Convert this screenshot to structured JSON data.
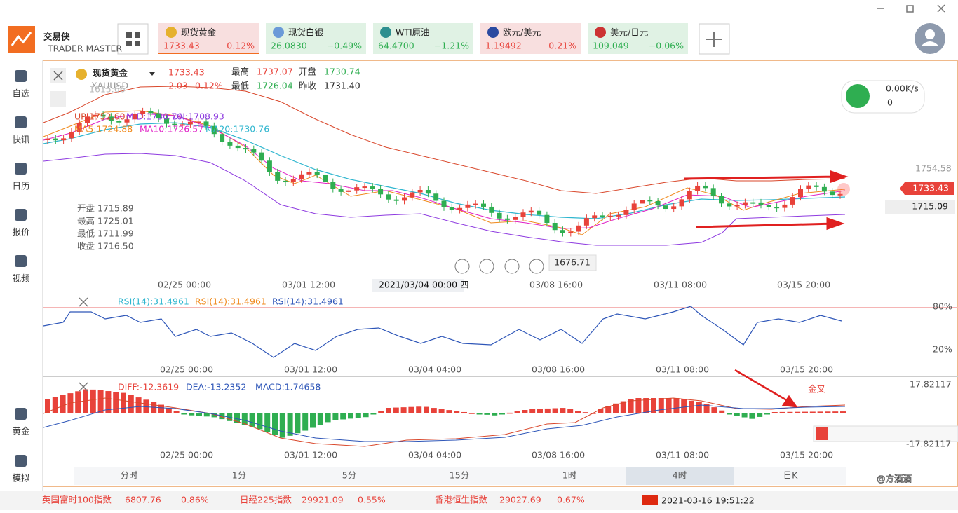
{
  "app": {
    "logo": "交易侠",
    "logo_sub": "TRADER MASTER"
  },
  "tickers": [
    {
      "name": "现货黄金",
      "price": "1733.43",
      "change": "0.12%"
    },
    {
      "name": "现货白银",
      "price": "26.0830",
      "change": "−0.49%"
    },
    {
      "name": "WTI原油",
      "price": "64.4700",
      "change": "−1.21%"
    },
    {
      "name": "欧元/美元",
      "price": "1.19492",
      "change": "0.21%"
    },
    {
      "name": "美元/日元",
      "price": "109.049",
      "change": "−0.06%"
    }
  ],
  "nav": [
    "自选",
    "快讯",
    "日历",
    "报价",
    "视频",
    "黄金",
    "模拟"
  ],
  "quote": {
    "symbol": "现货黄金",
    "code": "XAUUSD",
    "price": "1733.43",
    "change": "2.03",
    "change_pct": "0.12%",
    "high_label": "最高",
    "high": "1737.07",
    "open_label": "开盘",
    "open": "1730.74",
    "low_label": "最低",
    "low": "1726.04",
    "prev_label": "昨收",
    "prev": "1731.40"
  },
  "main_chart": {
    "ghost_price": "1615.66",
    "boll": [
      "UP:1752.60",
      "MID:1730.76",
      "DN:1708.93"
    ],
    "ma": [
      "MA5:1724.88",
      "MA10:1726.57",
      "MA20:1730.76"
    ],
    "right_labels": [
      "1754.58",
      "1733.43",
      "1715.09"
    ],
    "crosshair": [
      "开盘 1715.89",
      "最高 1725.01",
      "最低 1711.99",
      "收盘 1716.50"
    ],
    "min_label": "1676.71",
    "x_labels": [
      "02/25 00:00",
      "03/01 12:00",
      "2021/03/04 00:00 四",
      "03/08 16:00",
      "03/11 08:00",
      "03/15 20:00"
    ]
  },
  "network": {
    "speed": "0.00K/s",
    "count": "0"
  },
  "rsi": {
    "labels": [
      "RSI(14):31.4961",
      "RSI(14):31.4961",
      "RSI(14):31.4961"
    ],
    "upper": "80%",
    "lower": "20%",
    "x_labels": [
      "02/25 00:00",
      "03/01 12:00",
      "03/04 04:00",
      "03/08 16:00",
      "03/11 08:00",
      "03/15 20:00"
    ]
  },
  "macd": {
    "diff": "DIFF:-12.3619",
    "dea": "DEA:-13.2352",
    "macd": "MACD:1.74658",
    "top": "17.82117",
    "bottom": "-17.82117",
    "annotation": "金叉",
    "x_labels": [
      "02/25 00:00",
      "03/01 12:00",
      "03/04 04:00",
      "03/08 16:00",
      "03/11 08:00",
      "03/15 20:00"
    ]
  },
  "periods": [
    "分时",
    "1分",
    "5分",
    "15分",
    "1时",
    "4时",
    "日K"
  ],
  "footer": {
    "indices": [
      {
        "name": "英国富时100指数",
        "value": "6807.76",
        "change": "0.86%"
      },
      {
        "name": "日经225指数",
        "value": "29921.09",
        "change": "0.55%"
      },
      {
        "name": "香港恒生指数",
        "value": "29027.69",
        "change": "0.67%"
      }
    ],
    "datetime": "2021-03-16 19:51:22",
    "watermark": "@方酒酒"
  }
}
